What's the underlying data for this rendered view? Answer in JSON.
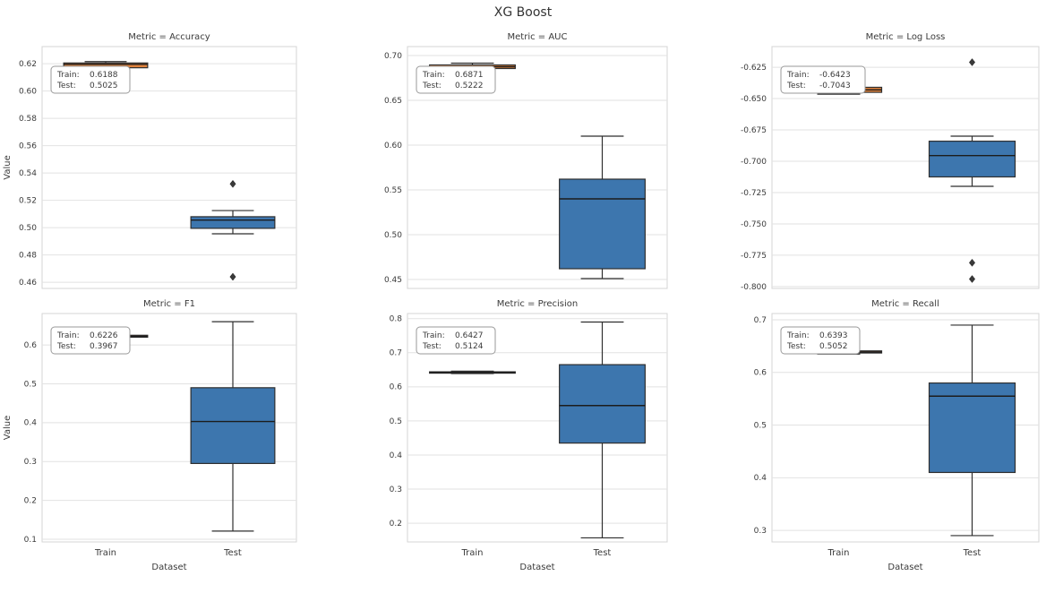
{
  "title": "XG Boost",
  "xlabel": "Dataset",
  "ylabel": "Value",
  "categories": [
    "Train",
    "Test"
  ],
  "colors": {
    "train": "#e0823c",
    "test": "#3d76ae",
    "edge": "#2f2f2f",
    "outlier": "#3a3a3a",
    "grid": "#e2e2e2",
    "spine": "#d4d4d4",
    "text": "#3a3a3a"
  },
  "chart_data": [
    {
      "type": "box",
      "slug": "accuracy",
      "title": "Metric = Accuracy",
      "ylim": [
        0.4555,
        0.6325
      ],
      "tick_values": [
        0.46,
        0.48,
        0.5,
        0.52,
        0.54,
        0.56,
        0.58,
        0.6,
        0.62
      ],
      "tick_labels": [
        "0.46",
        "0.48",
        "0.50",
        "0.52",
        "0.54",
        "0.56",
        "0.58",
        "0.60",
        "0.62"
      ],
      "annotation": {
        "train_label": "Train:",
        "train_value": "0.6188",
        "test_label": "Test:",
        "test_value": "0.5025"
      },
      "series": [
        {
          "name": "Train",
          "color_key": "train",
          "mean": 0.6188,
          "whislo": 0.6145,
          "q1": 0.617,
          "med": 0.6195,
          "q3": 0.6205,
          "whishi": 0.6215,
          "outliers": []
        },
        {
          "name": "Test",
          "color_key": "test",
          "mean": 0.5025,
          "whislo": 0.4955,
          "q1": 0.4995,
          "med": 0.5055,
          "q3": 0.508,
          "whishi": 0.5125,
          "outliers": [
            0.532,
            0.464
          ]
        }
      ]
    },
    {
      "type": "box",
      "slug": "auc",
      "title": "Metric = AUC",
      "ylim": [
        0.44,
        0.71
      ],
      "tick_values": [
        0.45,
        0.5,
        0.55,
        0.6,
        0.65,
        0.7
      ],
      "tick_labels": [
        "0.45",
        "0.50",
        "0.55",
        "0.60",
        "0.65",
        "0.70"
      ],
      "annotation": {
        "train_label": "Train:",
        "train_value": "0.6871",
        "test_label": "Test:",
        "test_value": "0.5222"
      },
      "series": [
        {
          "name": "Train",
          "color_key": "train",
          "mean": 0.6871,
          "whislo": 0.6835,
          "q1": 0.6855,
          "med": 0.6875,
          "q3": 0.6895,
          "whishi": 0.6915,
          "outliers": []
        },
        {
          "name": "Test",
          "color_key": "test",
          "mean": 0.5222,
          "whislo": 0.451,
          "q1": 0.462,
          "med": 0.54,
          "q3": 0.562,
          "whishi": 0.61,
          "outliers": []
        }
      ]
    },
    {
      "type": "box",
      "slug": "log-loss",
      "title": "Metric = Log Loss",
      "ylim": [
        -0.8015,
        -0.6085
      ],
      "tick_values": [
        -0.8,
        -0.775,
        -0.75,
        -0.725,
        -0.7,
        -0.675,
        -0.65,
        -0.625
      ],
      "tick_labels": [
        "-0.800",
        "-0.775",
        "-0.750",
        "-0.725",
        "-0.700",
        "-0.675",
        "-0.650",
        "-0.625"
      ],
      "annotation": {
        "train_label": "Train:",
        "train_value": "-0.6423",
        "test_label": "Test:",
        "test_value": "-0.7043"
      },
      "series": [
        {
          "name": "Train",
          "color_key": "train",
          "mean": -0.6423,
          "whislo": -0.6465,
          "q1": -0.645,
          "med": -0.643,
          "q3": -0.641,
          "whishi": -0.6395,
          "outliers": []
        },
        {
          "name": "Test",
          "color_key": "test",
          "mean": -0.7043,
          "whislo": -0.72,
          "q1": -0.7125,
          "med": -0.6955,
          "q3": -0.684,
          "whishi": -0.68,
          "outliers": [
            -0.621,
            -0.781,
            -0.794
          ]
        }
      ]
    },
    {
      "type": "box",
      "slug": "f1",
      "title": "Metric = F1",
      "ylim": [
        0.093,
        0.681
      ],
      "tick_values": [
        0.1,
        0.2,
        0.3,
        0.4,
        0.5,
        0.6
      ],
      "tick_labels": [
        "0.1",
        "0.2",
        "0.3",
        "0.4",
        "0.5",
        "0.6"
      ],
      "annotation": {
        "train_label": "Train:",
        "train_value": "0.6226",
        "test_label": "Test:",
        "test_value": "0.3967"
      },
      "series": [
        {
          "name": "Train",
          "color_key": "train",
          "mean": 0.6226,
          "whislo": 0.617,
          "q1": 0.62,
          "med": 0.6225,
          "q3": 0.625,
          "whishi": 0.628,
          "outliers": []
        },
        {
          "name": "Test",
          "color_key": "test",
          "mean": 0.3967,
          "whislo": 0.121,
          "q1": 0.295,
          "med": 0.403,
          "q3": 0.49,
          "whishi": 0.66,
          "outliers": []
        }
      ]
    },
    {
      "type": "box",
      "slug": "precision",
      "title": "Metric = Precision",
      "ylim": [
        0.145,
        0.815
      ],
      "tick_values": [
        0.2,
        0.3,
        0.4,
        0.5,
        0.6,
        0.7,
        0.8
      ],
      "tick_labels": [
        "0.2",
        "0.3",
        "0.4",
        "0.5",
        "0.6",
        "0.7",
        "0.8"
      ],
      "annotation": {
        "train_label": "Train:",
        "train_value": "0.6427",
        "test_label": "Test:",
        "test_value": "0.5124"
      },
      "series": [
        {
          "name": "Train",
          "color_key": "train",
          "mean": 0.6427,
          "whislo": 0.639,
          "q1": 0.641,
          "med": 0.6425,
          "q3": 0.644,
          "whishi": 0.646,
          "outliers": []
        },
        {
          "name": "Test",
          "color_key": "test",
          "mean": 0.5124,
          "whislo": 0.157,
          "q1": 0.435,
          "med": 0.545,
          "q3": 0.665,
          "whishi": 0.79,
          "outliers": []
        }
      ]
    },
    {
      "type": "box",
      "slug": "recall",
      "title": "Metric = Recall",
      "ylim": [
        0.278,
        0.712
      ],
      "tick_values": [
        0.3,
        0.4,
        0.5,
        0.6,
        0.7
      ],
      "tick_labels": [
        "0.3",
        "0.4",
        "0.5",
        "0.6",
        "0.7"
      ],
      "annotation": {
        "train_label": "Train:",
        "train_value": "0.6393",
        "test_label": "Test:",
        "test_value": "0.5052"
      },
      "series": [
        {
          "name": "Train",
          "color_key": "train",
          "mean": 0.6393,
          "whislo": 0.635,
          "q1": 0.637,
          "med": 0.639,
          "q3": 0.641,
          "whishi": 0.643,
          "outliers": []
        },
        {
          "name": "Test",
          "color_key": "test",
          "mean": 0.5052,
          "whislo": 0.29,
          "q1": 0.41,
          "med": 0.555,
          "q3": 0.58,
          "whishi": 0.69,
          "outliers": []
        }
      ]
    }
  ]
}
